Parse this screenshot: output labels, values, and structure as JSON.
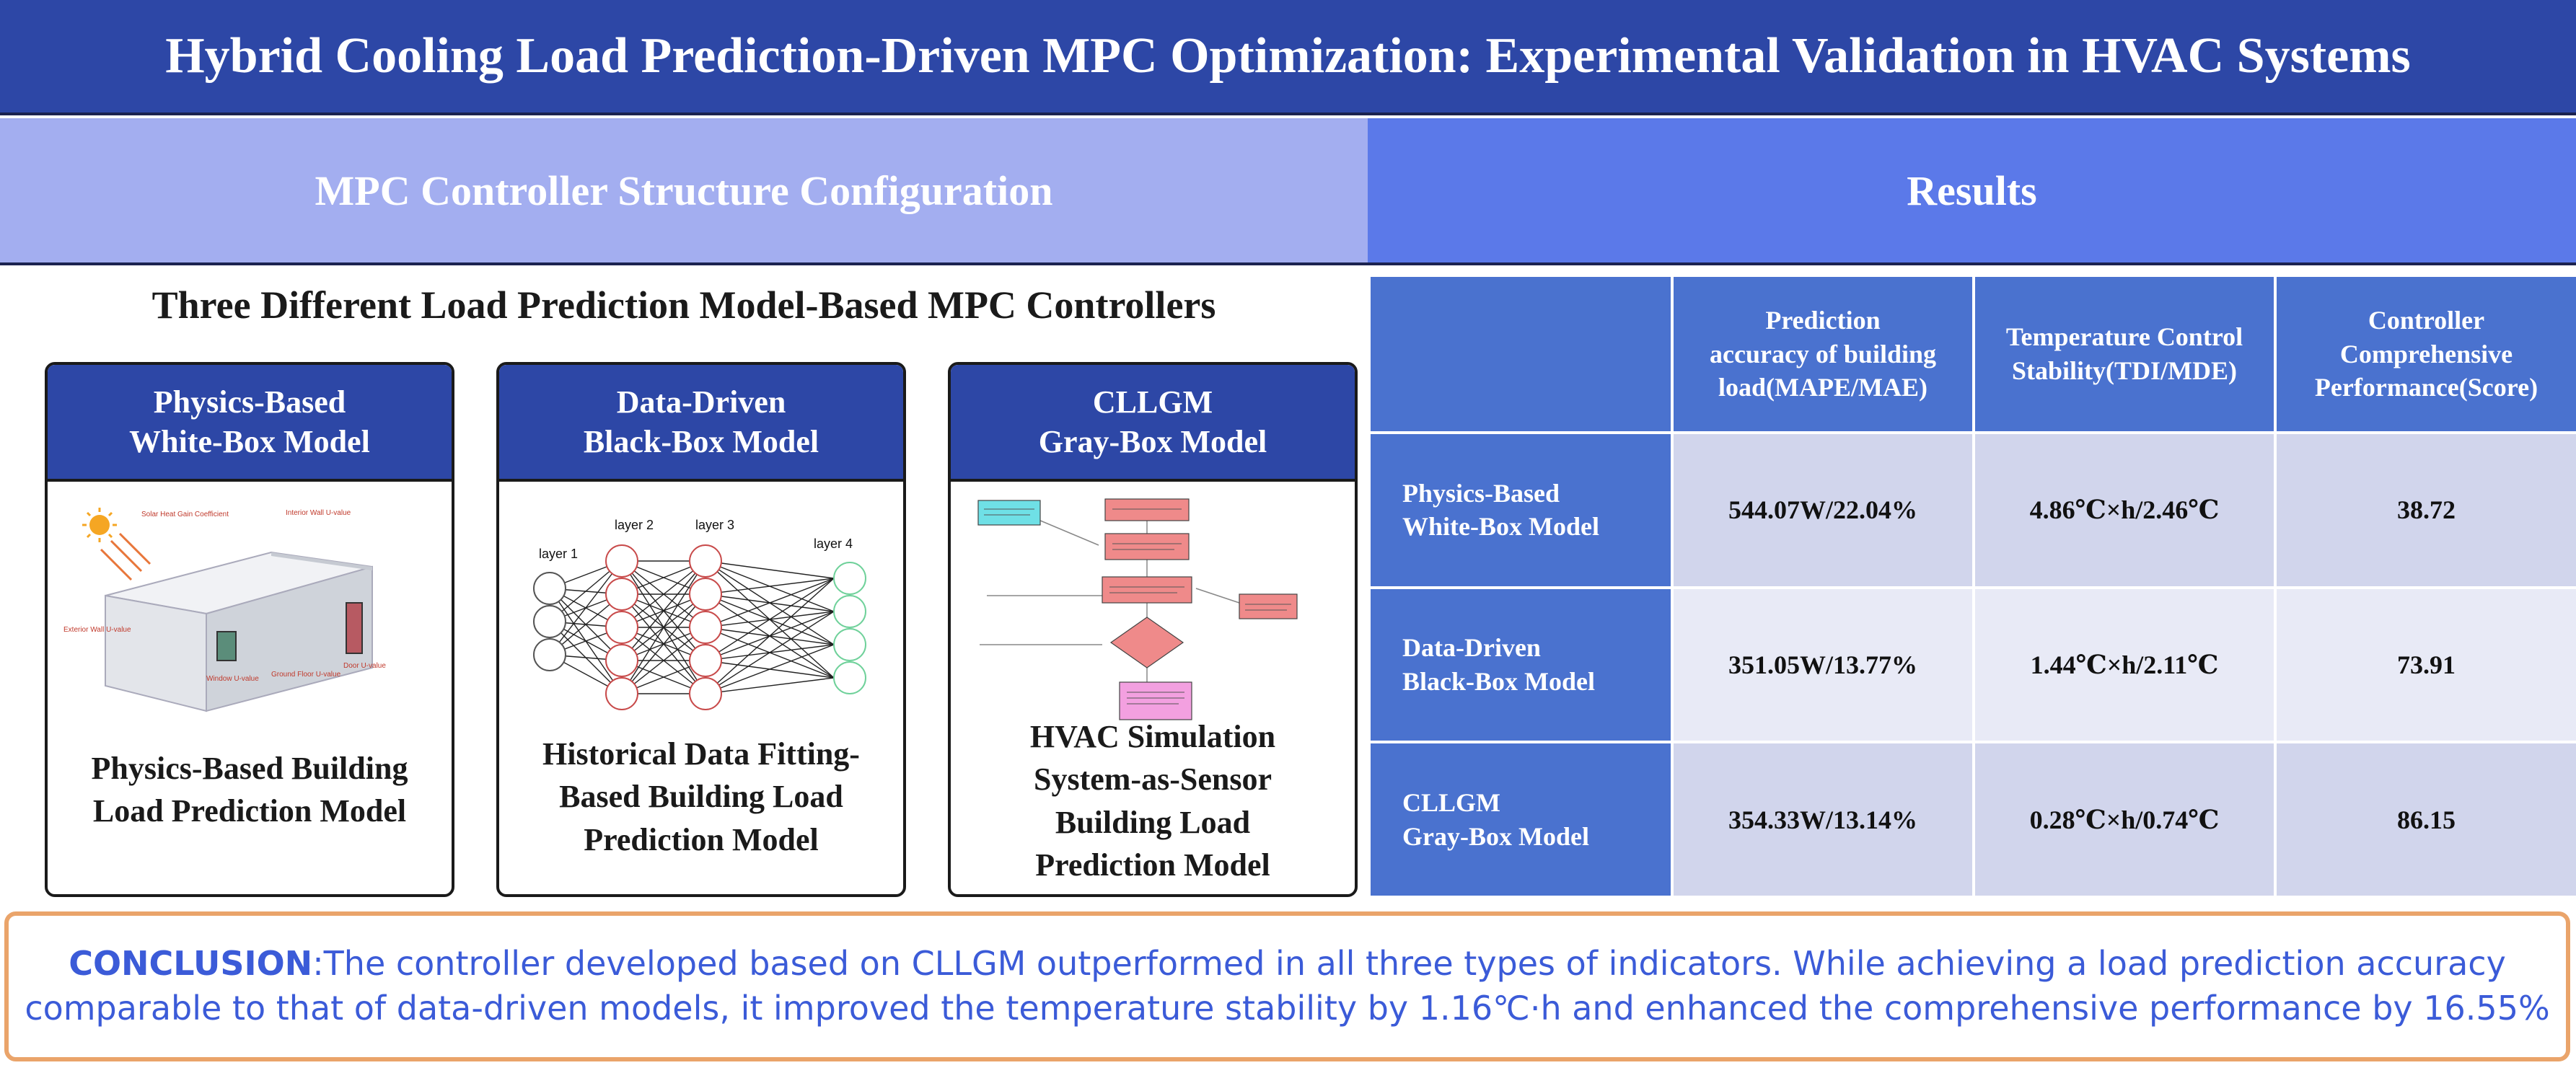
{
  "header": {
    "title": "Hybrid Cooling Load Prediction-Driven MPC Optimization: Experimental Validation in HVAC Systems",
    "left_section": "MPC Controller Structure Configuration",
    "right_section": "Results"
  },
  "left": {
    "subtitle": "Three Different Load Prediction Model-Based MPC Controllers",
    "cards": [
      {
        "title_lines": [
          "Physics-Based",
          "White-Box Model"
        ],
        "image_labels": [
          "Solar Heat Gain Coefficient",
          "Interior Wall U-value",
          "Exterior Wall U-value",
          "Window U-value",
          "Ground Floor U-value",
          "Door U-value"
        ],
        "desc_lines": [
          "Physics-Based Building",
          "Load Prediction Model"
        ]
      },
      {
        "title_lines": [
          "Data-Driven",
          "Black-Box Model"
        ],
        "image_labels": [
          "layer 1",
          "layer 2",
          "layer 3",
          "layer 4"
        ],
        "desc_lines": [
          "Historical Data Fitting-",
          "Based Building Load",
          "Prediction Model"
        ]
      },
      {
        "title_lines": [
          "CLLGM",
          "Gray-Box Model"
        ],
        "desc_lines": [
          "HVAC Simulation",
          "System-as-Sensor",
          "Building Load",
          "Prediction Model"
        ]
      }
    ]
  },
  "results": {
    "columns": [
      [
        "Prediction",
        "accuracy of building",
        "load(MAPE/MAE)"
      ],
      [
        "Temperature Control",
        "Stability(TDI/MDE)"
      ],
      [
        "Controller",
        "Comprehensive",
        "Performance(Score)"
      ]
    ],
    "rows": [
      {
        "label": [
          "Physics-Based",
          "White-Box Model"
        ],
        "values": [
          "544.07W/22.04%",
          "4.86℃×h/2.46℃",
          "38.72"
        ]
      },
      {
        "label": [
          "Data-Driven",
          "Black-Box Model"
        ],
        "values": [
          "351.05W/13.77%",
          "1.44℃×h/2.11℃",
          "73.91"
        ]
      },
      {
        "label": [
          "CLLGM",
          "Gray-Box Model"
        ],
        "values": [
          "354.33W/13.14%",
          "0.28℃×h/0.74℃",
          "86.15"
        ]
      }
    ]
  },
  "conclusion": {
    "label": "CONCLUSION",
    "line1": ":The controller developed based on CLLGM outperformed in all three types of indicators. While achieving a load prediction accuracy",
    "line2": "comparable to that of data-driven models, it improved the temperature stability by 1.16℃·h and enhanced the comprehensive performance by 16.55%"
  },
  "colors": {
    "title_bg": "#2d47a6",
    "left_header_bg": "#a3aef0",
    "right_header_bg": "#5b79e9",
    "table_header_bg": "#4a72cf",
    "conclusion_border": "#eaa46a",
    "conclusion_text": "#3b5bd8"
  }
}
